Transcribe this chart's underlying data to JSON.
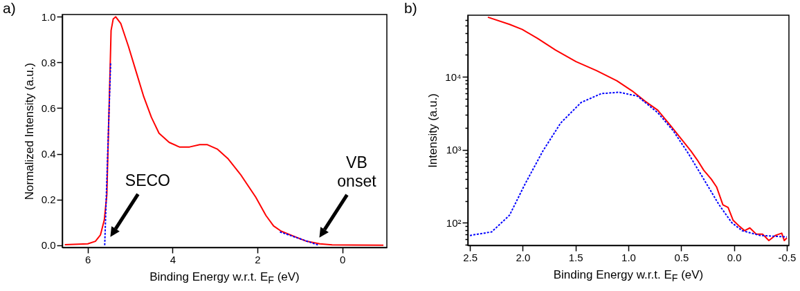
{
  "chart_data": [
    {
      "type": "line",
      "title": "a)",
      "xlabel": "Binding Energy w.r.t. E$_{F}$ (eV)",
      "ylabel": "Normalized Intensity (a.u.)",
      "xlim": [
        6.6,
        -1.05
      ],
      "ylim": [
        -0.01,
        1.01
      ],
      "xticks": [
        6,
        4,
        2,
        0
      ],
      "yticks": [
        {
          "value": 0,
          "label": "0.0"
        },
        {
          "value": 0.2,
          "label": "0.2"
        },
        {
          "value": 0.4,
          "label": "0.4"
        },
        {
          "value": 0.6,
          "label": "0.6"
        },
        {
          "value": 0.8,
          "label": "0.8"
        },
        {
          "value": 1,
          "label": "1.0"
        }
      ],
      "series": [
        {
          "color": "#ff0000",
          "line_style": "solid",
          "x": [
            6.54,
            6.0,
            5.82,
            5.7,
            5.61,
            5.55,
            5.51,
            5.47,
            5.45,
            5.4,
            5.34,
            5.22,
            5.04,
            4.86,
            4.68,
            4.5,
            4.32,
            4.08,
            3.84,
            3.6,
            3.36,
            3.18,
            2.94,
            2.7,
            2.4,
            2.04,
            1.8,
            1.62,
            1.44,
            1.14,
            0.84,
            0.53,
            0.24,
            -0.97
          ],
          "values": [
            0.002,
            0.006,
            0.017,
            0.045,
            0.11,
            0.22,
            0.51,
            0.79,
            0.94,
            0.99,
            1.0,
            0.97,
            0.87,
            0.76,
            0.65,
            0.56,
            0.49,
            0.45,
            0.43,
            0.43,
            0.44,
            0.44,
            0.42,
            0.38,
            0.31,
            0.21,
            0.13,
            0.084,
            0.061,
            0.039,
            0.017,
            0.006,
            0.001,
            0.0
          ]
        },
        {
          "color": "#0000ff",
          "line_style": "dotted",
          "x": [
            5.6,
            5.46
          ],
          "values": [
            0,
            0.8
          ]
        },
        {
          "color": "#0000ff",
          "line_style": "dotted",
          "x": [
            1.47,
            0.56
          ],
          "values": [
            0.058,
            0
          ]
        }
      ],
      "annotations": [
        "SECO",
        "VB onset"
      ]
    },
    {
      "type": "line",
      "title": "b)",
      "xlabel": "Binding Energy w.r.t. E$_{F}$ (eV)",
      "ylabel": "Intensity (a.u.)",
      "log": "y",
      "xlim": [
        2.52,
        -0.52
      ],
      "ylim": [
        49,
        70000
      ],
      "xticks": [
        {
          "value": 2.5,
          "label": "2.5"
        },
        {
          "value": 2,
          "label": "2.0"
        },
        {
          "value": 1.5,
          "label": "1.5"
        },
        {
          "value": 1,
          "label": "1.0"
        },
        {
          "value": 0.5,
          "label": "0.5"
        },
        {
          "value": 0,
          "label": "0.0"
        },
        {
          "value": -0.5,
          "label": "-0.5"
        }
      ],
      "yticks": [
        {
          "value": 50,
          "label": null
        },
        {
          "value": 60,
          "label": null
        },
        {
          "value": 70,
          "label": null
        },
        {
          "value": 80,
          "label": null
        },
        {
          "value": 90,
          "label": null
        },
        {
          "value": 100,
          "label": "10²"
        },
        {
          "value": 200,
          "label": null
        },
        {
          "value": 300,
          "label": null
        },
        {
          "value": 400,
          "label": null
        },
        {
          "value": 500,
          "label": null
        },
        {
          "value": 600,
          "label": null
        },
        {
          "value": 700,
          "label": null
        },
        {
          "value": 800,
          "label": null
        },
        {
          "value": 900,
          "label": null
        },
        {
          "value": 1000,
          "label": "10³"
        },
        {
          "value": 2000,
          "label": null
        },
        {
          "value": 3000,
          "label": null
        },
        {
          "value": 4000,
          "label": null
        },
        {
          "value": 5000,
          "label": null
        },
        {
          "value": 6000,
          "label": null
        },
        {
          "value": 7000,
          "label": null
        },
        {
          "value": 8000,
          "label": null
        },
        {
          "value": 9000,
          "label": null
        },
        {
          "value": 10000,
          "label": "10⁴"
        },
        {
          "value": 20000,
          "label": null
        },
        {
          "value": 30000,
          "label": null
        },
        {
          "value": 40000,
          "label": null
        },
        {
          "value": 50000,
          "label": null
        },
        {
          "value": 60000,
          "label": null
        }
      ],
      "series": [
        {
          "color": "#ff0000",
          "line_style": "solid",
          "x": [
            2.33,
            2.125,
            2.004,
            1.859,
            1.69,
            1.496,
            1.302,
            1.109,
            0.964,
            0.843,
            0.722,
            0.601,
            0.504,
            0.407,
            0.347,
            0.286,
            0.214,
            0.165,
            0.105,
            0.056,
            0.008,
            -0.053,
            -0.101,
            -0.15,
            -0.21,
            -0.27,
            -0.33,
            -0.39,
            -0.452,
            -0.476,
            -0.5
          ],
          "values": [
            65700,
            52400,
            44600,
            33600,
            23300,
            16200,
            12200,
            8850,
            6410,
            4640,
            3500,
            2150,
            1440,
            960,
            724,
            524,
            395,
            310,
            176,
            162,
            108,
            89,
            78,
            85,
            70,
            70,
            57,
            67,
            72,
            57,
            62
          ]
        },
        {
          "color": "#0000ff",
          "line_style": "dotted",
          "x": [
            2.5,
            2.294,
            2.125,
            1.98,
            1.81,
            1.641,
            1.448,
            1.254,
            1.085,
            0.915,
            0.722,
            0.576,
            0.431,
            0.286,
            0.141,
            0.02,
            -0.077,
            -0.246,
            -0.5
          ],
          "values": [
            67,
            75,
            127,
            336,
            960,
            2330,
            4450,
            5910,
            6150,
            5450,
            3230,
            1830,
            885,
            395,
            176,
            100,
            78,
            67,
            64
          ]
        }
      ]
    }
  ]
}
